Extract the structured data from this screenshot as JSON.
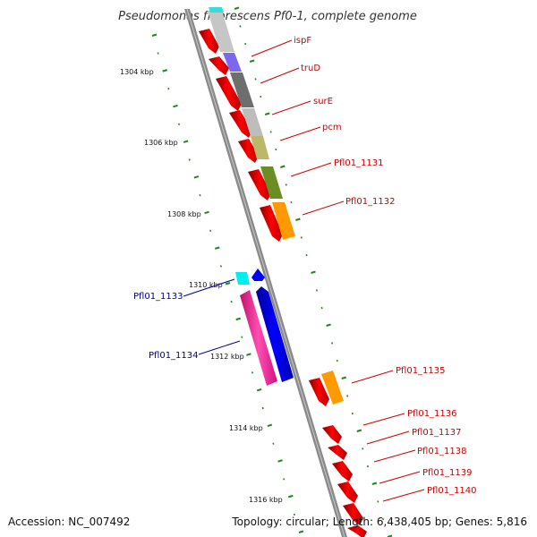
{
  "title": "Pseudomonas fluorescens Pf0-1, complete genome",
  "footer": {
    "accession": "Accession: NC_007492",
    "stats": "Topology: circular; Length: 6,438,405 bp; Genes: 5,816"
  },
  "tick_labels": [
    "1304 kbp",
    "1306 kbp",
    "1308 kbp",
    "1310 kbp",
    "1312 kbp",
    "1314 kbp",
    "1316 kbp"
  ],
  "colors": {
    "backbone": "#888888",
    "forward_arrow": "#ff0000",
    "tick": "#1a8a1a",
    "label_red": "#cc0000",
    "label_blue": "#00008b"
  },
  "labels": [
    {
      "text": "ispF",
      "color": "#cc0000"
    },
    {
      "text": "truD",
      "color": "#cc0000"
    },
    {
      "text": "surE",
      "color": "#cc0000"
    },
    {
      "text": "pcm",
      "color": "#cc0000"
    },
    {
      "text": "Pfl01_1131",
      "color": "#cc0000"
    },
    {
      "text": "Pfl01_1132",
      "color": "#cc0000"
    },
    {
      "text": "Pfl01_1133",
      "color": "#00008b"
    },
    {
      "text": "Pfl01_1134",
      "color": "#00008b"
    },
    {
      "text": "Pfl01_1135",
      "color": "#cc0000"
    },
    {
      "text": "Pfl01_1136",
      "color": "#cc0000"
    },
    {
      "text": "Pfl01_1137",
      "color": "#cc0000"
    },
    {
      "text": "Pfl01_1138",
      "color": "#cc0000"
    },
    {
      "text": "Pfl01_1139",
      "color": "#cc0000"
    },
    {
      "text": "Pfl01_1140",
      "color": "#cc0000"
    }
  ],
  "genes": [
    {
      "name": "ispF",
      "color": "#c4c4c4"
    },
    {
      "name": "truD",
      "color": "#7b68ee"
    },
    {
      "name": "surE",
      "color": "#707070"
    },
    {
      "name": "pcm",
      "color": "#bcbcbc"
    },
    {
      "name": "pcm-2",
      "color": "#bdb76b"
    },
    {
      "name": "Pfl01_1131",
      "color": "#6b8e23"
    },
    {
      "name": "Pfl01_1132",
      "color": "#ff9900"
    },
    {
      "name": "Pfl01_1133",
      "color": "#00eeee"
    },
    {
      "name": "Pfl01_1133-arrow",
      "color": "#0000ff"
    },
    {
      "name": "Pfl01_1134",
      "color": "#ff1493"
    },
    {
      "name": "Pfl01_1134-arrow",
      "color": "#0000ff"
    },
    {
      "name": "Pfl01_1135",
      "color": "#ff9900"
    }
  ]
}
